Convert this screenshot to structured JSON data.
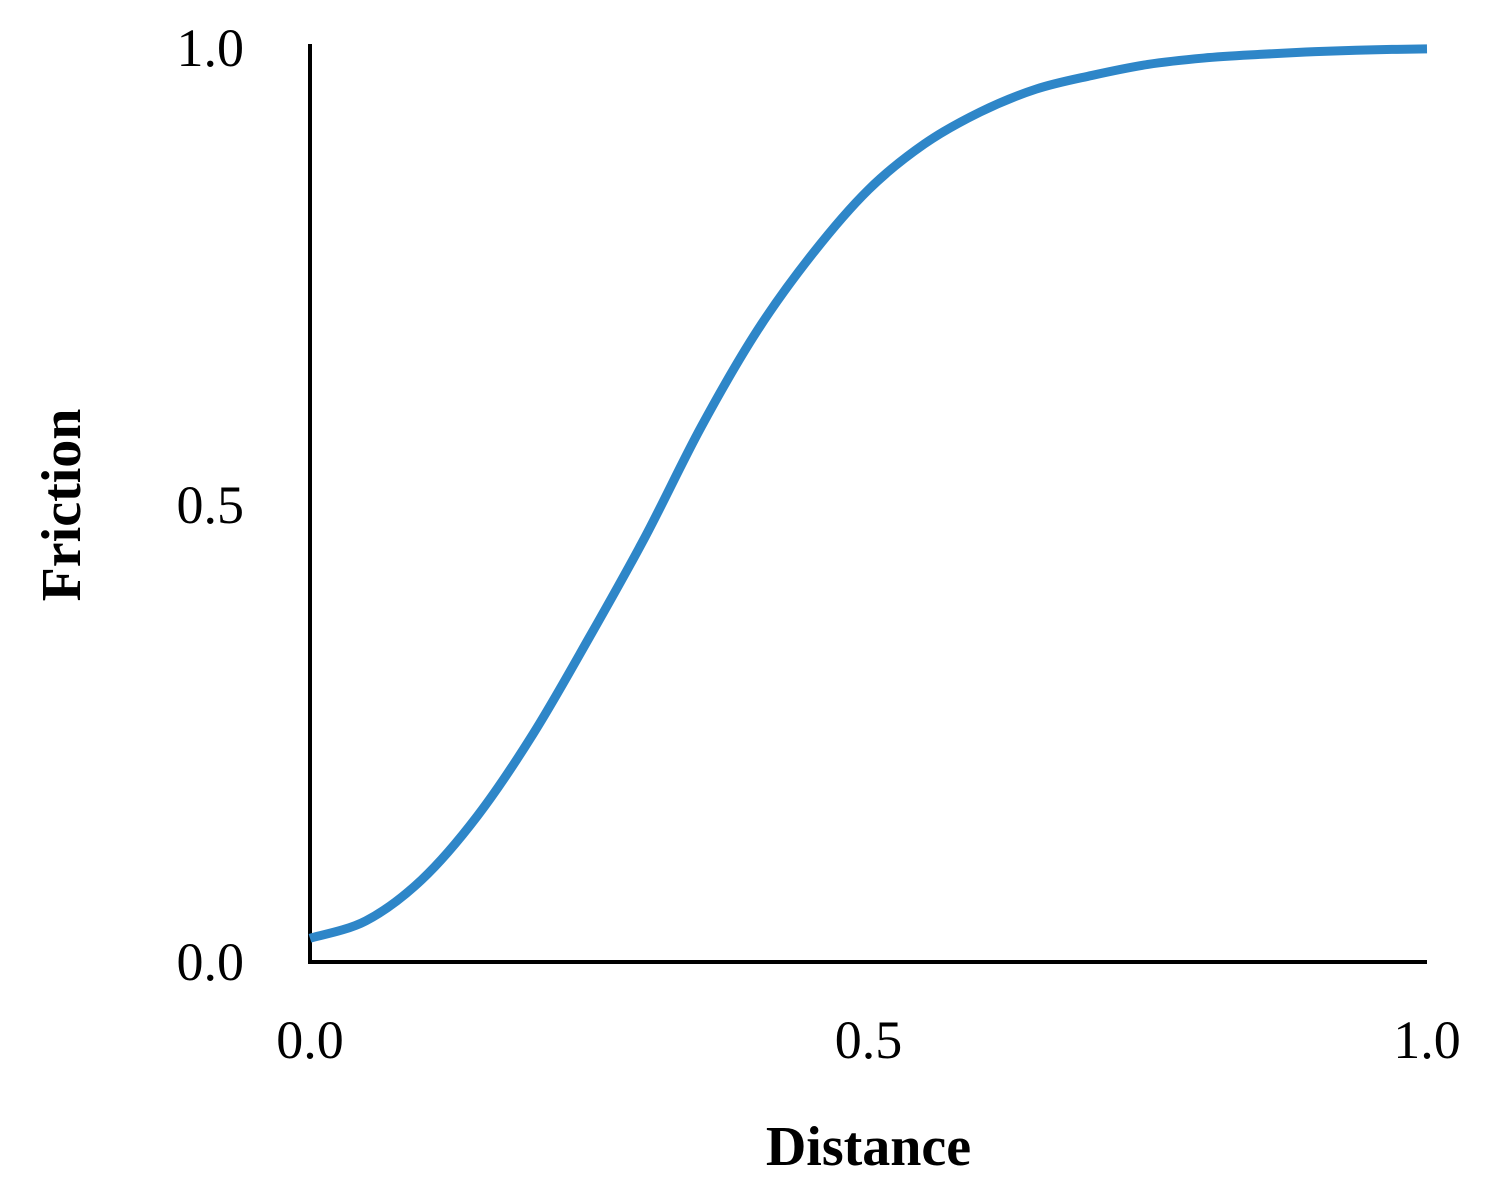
{
  "chart_data": {
    "type": "line",
    "title": "",
    "xlabel": "Distance",
    "ylabel": "Friction",
    "xlim": [
      0.0,
      1.0
    ],
    "ylim": [
      0.0,
      1.0
    ],
    "xticks": [
      "0.0",
      "0.5",
      "1.0"
    ],
    "yticks": [
      "0.0",
      "0.5",
      "1.0"
    ],
    "grid": false,
    "legend": "none",
    "series": [
      {
        "color": "#2E86C8",
        "x": [
          0.0,
          0.05,
          0.1,
          0.15,
          0.2,
          0.25,
          0.3,
          0.35,
          0.4,
          0.45,
          0.5,
          0.55,
          0.6,
          0.65,
          0.7,
          0.75,
          0.8,
          0.85,
          0.9,
          0.95,
          1.0
        ],
        "y": [
          0.026,
          0.045,
          0.09,
          0.16,
          0.25,
          0.355,
          0.465,
          0.585,
          0.69,
          0.775,
          0.845,
          0.895,
          0.93,
          0.955,
          0.97,
          0.982,
          0.989,
          0.993,
          0.996,
          0.998,
          0.999
        ]
      }
    ]
  }
}
